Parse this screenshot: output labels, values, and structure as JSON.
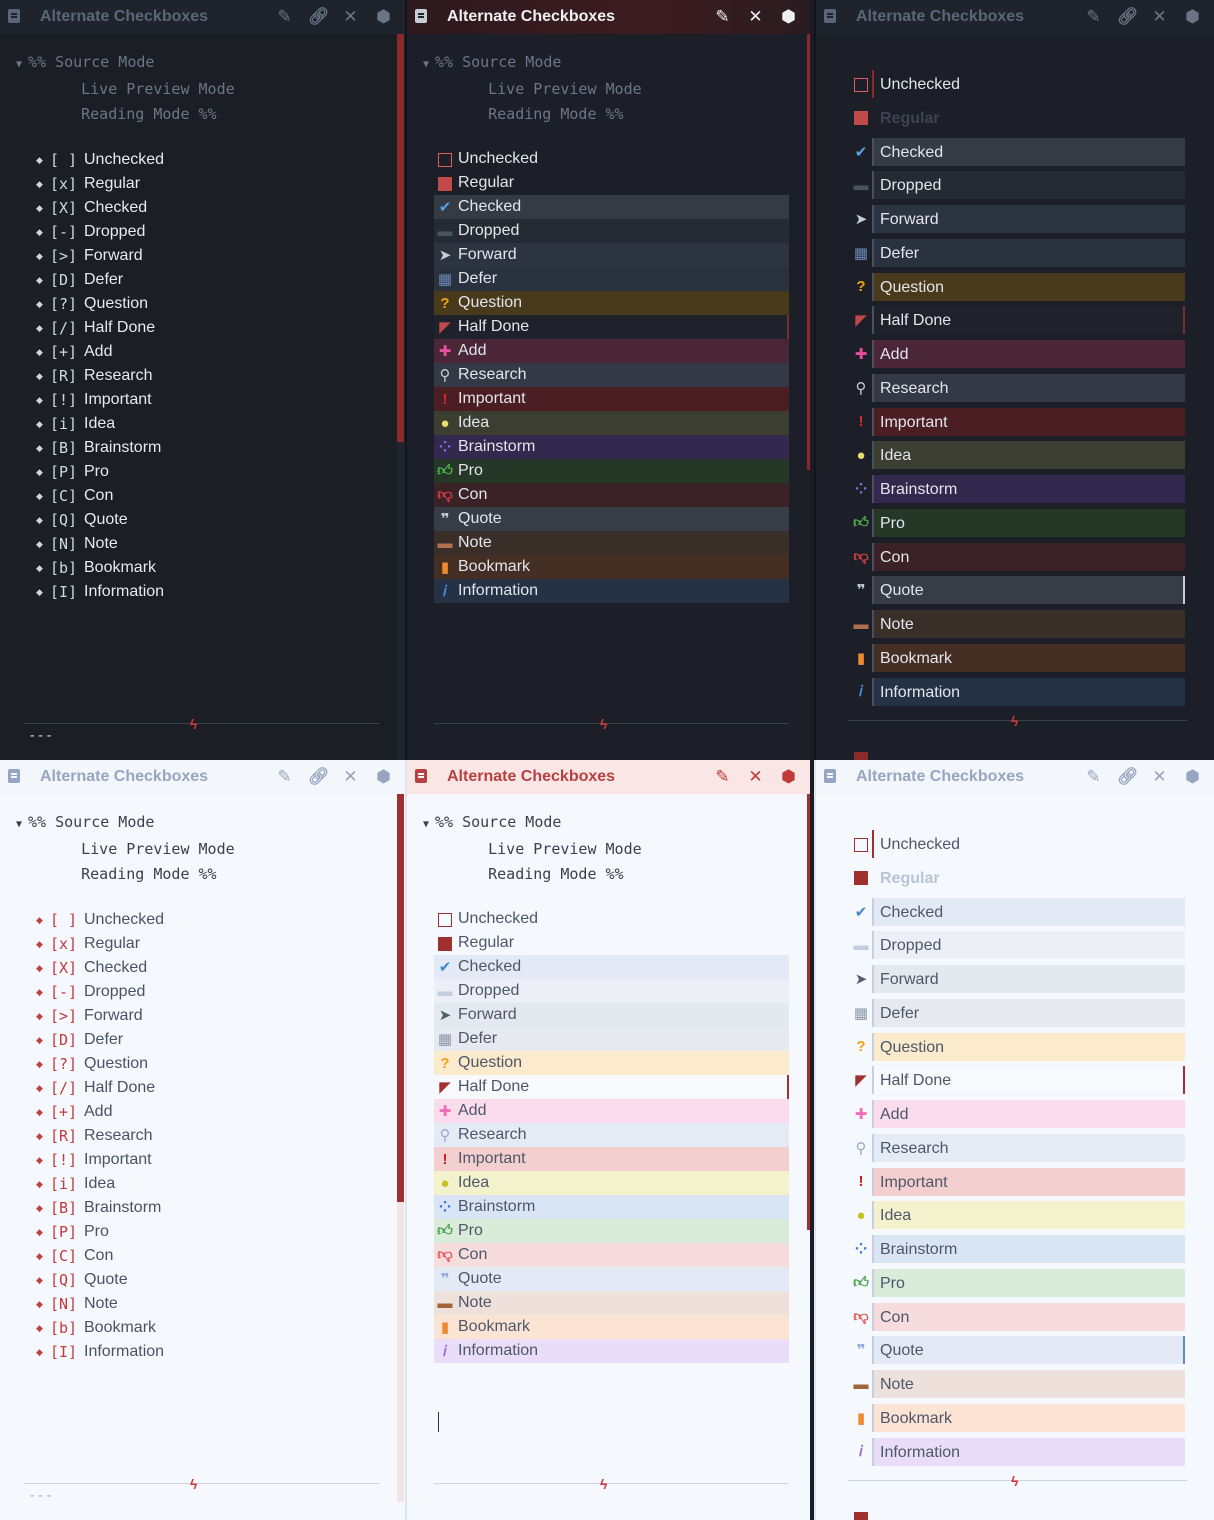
{
  "window": {
    "title": "Alternate Checkboxes",
    "icons": [
      "doc-icon",
      "edit-icon",
      "link-icon",
      "close-icon",
      "settings-icon"
    ]
  },
  "source": {
    "line1": "%% Source Mode",
    "line2": "Live Preview Mode",
    "line3": "Reading Mode %%",
    "bullets": [
      {
        "m": "[ ]",
        "l": "Unchecked"
      },
      {
        "m": "[x]",
        "l": "Regular"
      },
      {
        "m": "[X]",
        "l": "Checked"
      },
      {
        "m": "[-]",
        "l": "Dropped"
      },
      {
        "m": "[>]",
        "l": "Forward"
      },
      {
        "m": "[D]",
        "l": "Defer"
      },
      {
        "m": "[?]",
        "l": "Question"
      },
      {
        "m": "[/]",
        "l": "Half Done"
      },
      {
        "m": "[+]",
        "l": "Add"
      },
      {
        "m": "[R]",
        "l": "Research"
      },
      {
        "m": "[!]",
        "l": "Important"
      },
      {
        "m": "[i]",
        "l": "Idea"
      },
      {
        "m": "[B]",
        "l": "Brainstorm"
      },
      {
        "m": "[P]",
        "l": "Pro"
      },
      {
        "m": "[C]",
        "l": "Con"
      },
      {
        "m": "[Q]",
        "l": "Quote"
      },
      {
        "m": "[N]",
        "l": "Note"
      },
      {
        "m": "[b]",
        "l": "Bookmark"
      },
      {
        "m": "[I]",
        "l": "Information"
      }
    ],
    "hr_dashes": "---"
  },
  "items": [
    {
      "l": "Unchecked",
      "icon": "empty-box-icon"
    },
    {
      "l": "Regular",
      "icon": "filled-box-icon"
    },
    {
      "l": "Checked",
      "icon": "check-icon"
    },
    {
      "l": "Dropped",
      "icon": "dash-icon"
    },
    {
      "l": "Forward",
      "icon": "forward-icon"
    },
    {
      "l": "Defer",
      "icon": "calendar-icon"
    },
    {
      "l": "Question",
      "icon": "question-icon"
    },
    {
      "l": "Half Done",
      "icon": "half-done-icon"
    },
    {
      "l": "Add",
      "icon": "plus-icon"
    },
    {
      "l": "Research",
      "icon": "search-icon"
    },
    {
      "l": "Important",
      "icon": "exclamation-icon"
    },
    {
      "l": "Idea",
      "icon": "lightbulb-icon"
    },
    {
      "l": "Brainstorm",
      "icon": "brainstorm-icon"
    },
    {
      "l": "Pro",
      "icon": "thumbs-up-icon"
    },
    {
      "l": "Con",
      "icon": "thumbs-down-icon"
    },
    {
      "l": "Quote",
      "icon": "quote-icon"
    },
    {
      "l": "Note",
      "icon": "note-icon"
    },
    {
      "l": "Bookmark",
      "icon": "bookmark-icon"
    },
    {
      "l": "Information",
      "icon": "info-icon"
    }
  ],
  "colors": {
    "accent": "#c53a3a"
  }
}
